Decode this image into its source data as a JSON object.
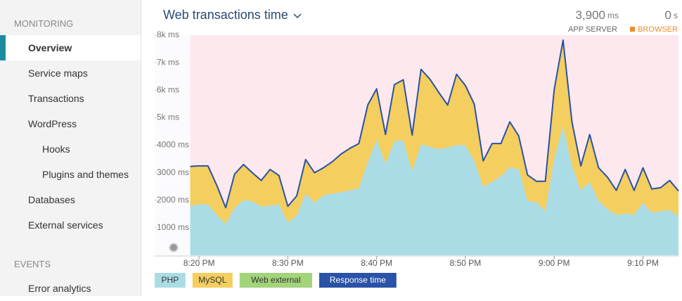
{
  "sidebar": {
    "sections": [
      {
        "title": "MONITORING",
        "items": [
          "Overview",
          "Service maps",
          "Transactions",
          "WordPress",
          "Hooks",
          "Plugins and themes",
          "Databases",
          "External services"
        ]
      },
      {
        "title": "EVENTS",
        "items": [
          "Error analytics"
        ]
      }
    ]
  },
  "summary": {
    "app_server": {
      "value": "3,900",
      "unit": "ms",
      "label": "APP SERVER"
    },
    "browser": {
      "value": "0",
      "unit": "s",
      "label": "BROWSER"
    }
  },
  "chart_data": {
    "type": "area",
    "title": "Web transactions time",
    "x": [
      "8:19 PM",
      "8:20 PM",
      "8:21 PM",
      "8:22 PM",
      "8:23 PM",
      "8:24 PM",
      "8:25 PM",
      "8:26 PM",
      "8:27 PM",
      "8:28 PM",
      "8:29 PM",
      "8:30 PM",
      "8:31 PM",
      "8:32 PM",
      "8:33 PM",
      "8:34 PM",
      "8:35 PM",
      "8:36 PM",
      "8:37 PM",
      "8:38 PM",
      "8:39 PM",
      "8:40 PM",
      "8:41 PM",
      "8:42 PM",
      "8:43 PM",
      "8:44 PM",
      "8:45 PM",
      "8:46 PM",
      "8:47 PM",
      "8:48 PM",
      "8:49 PM",
      "8:50 PM",
      "8:51 PM",
      "8:52 PM",
      "8:53 PM",
      "8:54 PM",
      "8:55 PM",
      "8:56 PM",
      "8:57 PM",
      "8:58 PM",
      "8:59 PM",
      "9:00 PM",
      "9:01 PM",
      "9:02 PM",
      "9:03 PM",
      "9:04 PM",
      "9:05 PM",
      "9:06 PM",
      "9:07 PM",
      "9:08 PM",
      "9:09 PM",
      "9:10 PM",
      "9:11 PM",
      "9:12 PM",
      "9:13 PM",
      "9:14 PM"
    ],
    "series": [
      {
        "name": "PHP",
        "kind": "area",
        "color": "#aadce6",
        "values": [
          1800,
          1850,
          1850,
          1470,
          1140,
          1730,
          2010,
          1960,
          1780,
          1800,
          1850,
          1190,
          1450,
          2240,
          1910,
          2180,
          2240,
          2290,
          2360,
          2440,
          3380,
          4190,
          3330,
          4140,
          4190,
          3050,
          4040,
          3940,
          3860,
          3910,
          4010,
          3990,
          3430,
          2490,
          2670,
          2870,
          3200,
          3120,
          1980,
          1930,
          1600,
          3510,
          4700,
          3250,
          2360,
          2670,
          1980,
          1680,
          1470,
          1520,
          1470,
          1910,
          1550,
          1600,
          1650,
          1420
        ]
      },
      {
        "name": "MySQL",
        "kind": "area",
        "color": "#f4ce5e",
        "values": [
          1430,
          1400,
          1400,
          1070,
          590,
          1220,
          1290,
          1040,
          940,
          1320,
          1050,
          590,
          710,
          1240,
          1090,
          1000,
          1160,
          1390,
          1530,
          1620,
          2080,
          1860,
          1060,
          2060,
          2190,
          1320,
          2720,
          2460,
          2060,
          1550,
          2570,
          2180,
          2060,
          940,
          1390,
          1190,
          1650,
          1220,
          940,
          760,
          1090,
          2510,
          3120,
          1600,
          890,
          1720,
          1200,
          1160,
          890,
          1600,
          890,
          1270,
          860,
          860,
          1070,
          920
        ]
      },
      {
        "name": "Web external",
        "kind": "area",
        "color": "#a3d47a",
        "values": [
          0,
          0,
          0,
          0,
          0,
          0,
          0,
          0,
          0,
          0,
          0,
          0,
          0,
          0,
          0,
          0,
          0,
          0,
          0,
          0,
          0,
          0,
          0,
          0,
          0,
          0,
          0,
          0,
          0,
          0,
          0,
          0,
          0,
          0,
          0,
          0,
          0,
          0,
          0,
          0,
          0,
          0,
          0,
          0,
          0,
          0,
          0,
          0,
          0,
          0,
          0,
          0,
          0,
          0,
          0,
          0
        ]
      },
      {
        "name": "Response time",
        "kind": "line",
        "color": "#2a52a6",
        "values": [
          3230,
          3250,
          3250,
          2540,
          1730,
          2950,
          3300,
          3000,
          2720,
          3120,
          2900,
          1780,
          2160,
          3480,
          3000,
          3180,
          3400,
          3680,
          3890,
          4060,
          5460,
          6050,
          4390,
          6200,
          6380,
          4370,
          6760,
          6400,
          5920,
          5460,
          6580,
          6170,
          5490,
          3430,
          4060,
          4060,
          4850,
          4340,
          2920,
          2690,
          2690,
          6020,
          7820,
          4850,
          3250,
          4390,
          3180,
          2840,
          2360,
          3120,
          2360,
          3180,
          2410,
          2460,
          2720,
          2340
        ]
      }
    ],
    "xlim": [
      "8:15 PM",
      "9:14 PM"
    ],
    "xticks": [
      "8:20 PM",
      "8:30 PM",
      "8:40 PM",
      "8:50 PM",
      "9:00 PM",
      "9:10 PM"
    ],
    "ylim": [
      0,
      8000
    ],
    "yticks": [
      {
        "value": 1000,
        "label": "1000 ms"
      },
      {
        "value": 2000,
        "label": "2000 ms"
      },
      {
        "value": 3000,
        "label": "3000 ms"
      },
      {
        "value": 4000,
        "label": "4000 ms"
      },
      {
        "value": 5000,
        "label": "5k ms"
      },
      {
        "value": 6000,
        "label": "6k ms"
      },
      {
        "value": 7000,
        "label": "7k ms"
      },
      {
        "value": 8000,
        "label": "8k ms"
      }
    ],
    "grid": false
  }
}
